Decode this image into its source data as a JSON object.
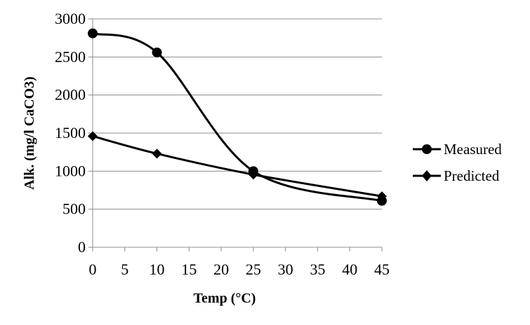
{
  "chart_data": {
    "type": "line",
    "xlabel": "Temp (°C)",
    "ylabel": "Alk. (mg/l CaCO3)",
    "xlim": [
      0,
      45
    ],
    "ylim": [
      0,
      3000
    ],
    "x_ticks": [
      "0",
      "5",
      "10",
      "15",
      "20",
      "25",
      "30",
      "35",
      "40",
      "45"
    ],
    "y_ticks": [
      "0",
      "500",
      "1000",
      "1500",
      "2000",
      "2500",
      "3000"
    ],
    "grid": "horizontal",
    "legend_position": "right",
    "smooth": true,
    "series": [
      {
        "name": "Measured",
        "marker": "circle",
        "color": "#000000",
        "x": [
          0,
          10,
          25,
          45
        ],
        "y": [
          2810,
          2560,
          1000,
          610
        ]
      },
      {
        "name": "Predicted",
        "marker": "diamond",
        "color": "#000000",
        "x": [
          0,
          10,
          25,
          45
        ],
        "y": [
          1460,
          1230,
          955,
          670
        ]
      }
    ]
  }
}
